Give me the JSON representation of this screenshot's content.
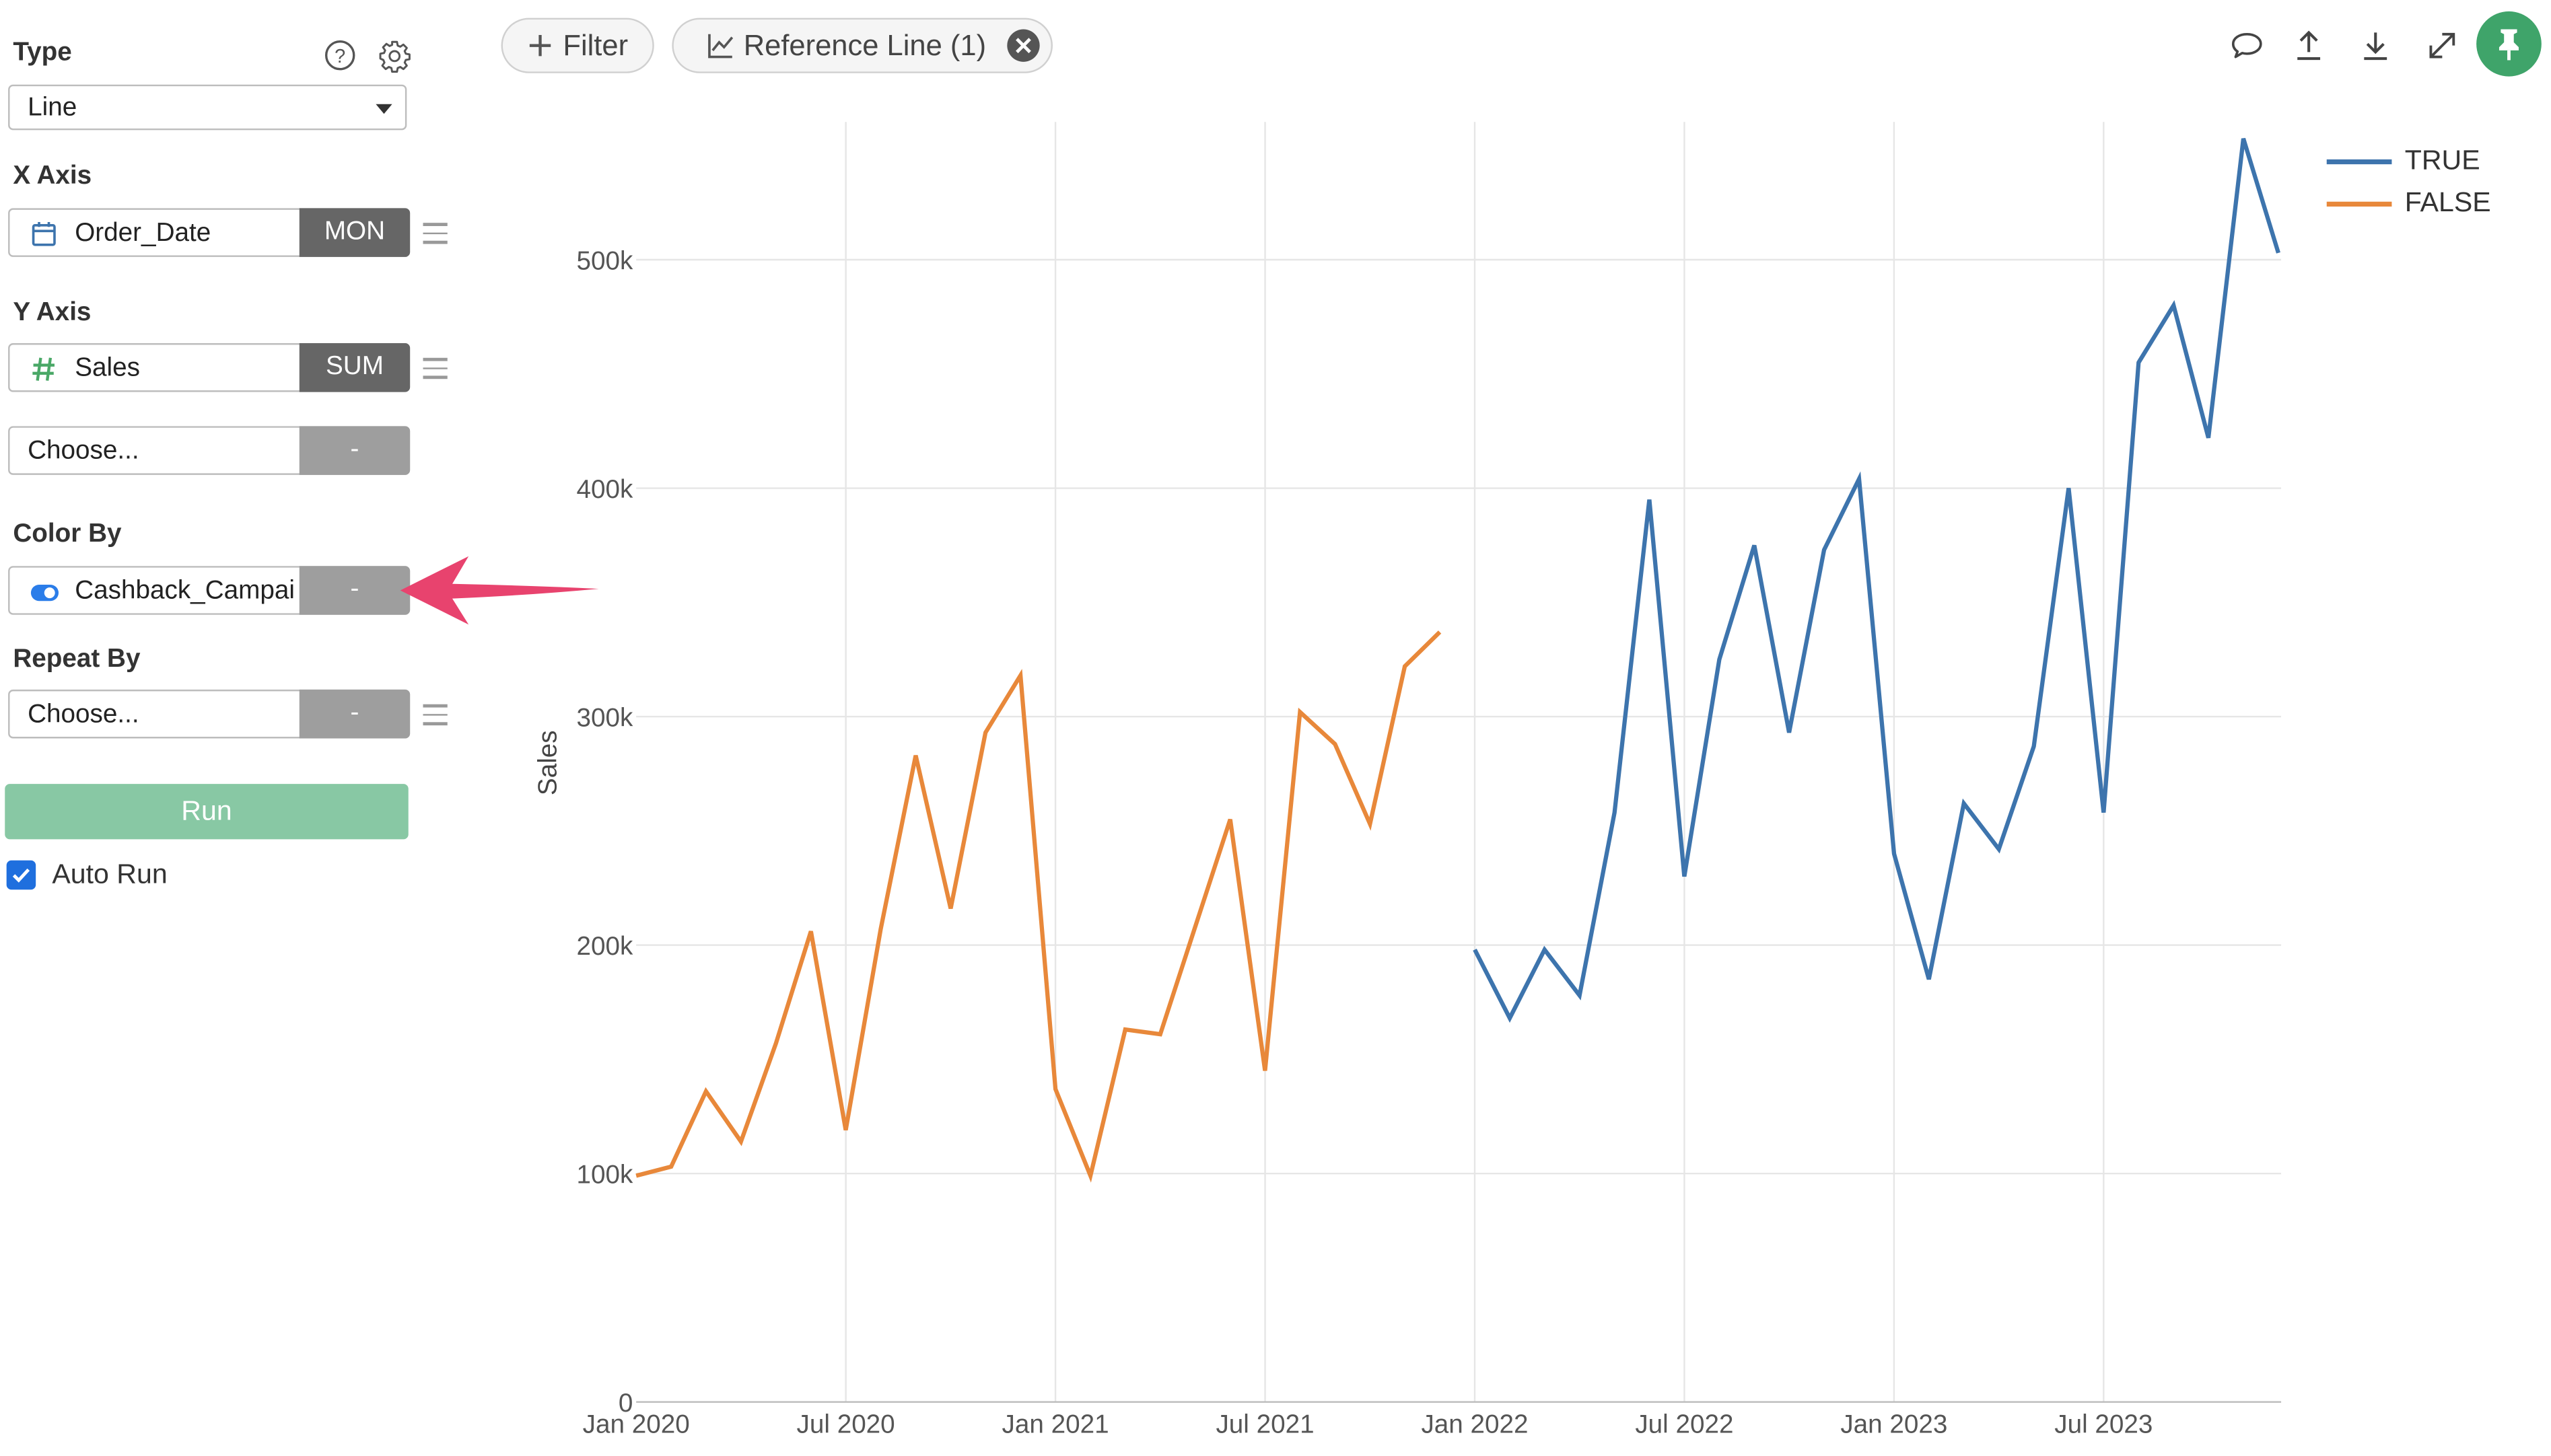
{
  "sidebar": {
    "type_label": "Type",
    "type_value": "Line",
    "x_axis_label": "X Axis",
    "x_field": "Order_Date",
    "x_agg": "MON",
    "y_axis_label": "Y Axis",
    "y_field": "Sales",
    "y_agg": "SUM",
    "y2_placeholder": "Choose...",
    "y2_agg": "-",
    "color_by_label": "Color By",
    "color_field": "Cashback_Campai",
    "color_agg": "-",
    "repeat_by_label": "Repeat By",
    "repeat_placeholder": "Choose...",
    "repeat_agg": "-",
    "run_label": "Run",
    "auto_run_label": "Auto Run",
    "auto_run_checked": true
  },
  "toolbar": {
    "filter_label": "Filter",
    "reference_line_label": "Reference Line (1)"
  },
  "icons": {
    "help": "help-icon",
    "settings": "gear-icon",
    "calendar": "calendar-icon",
    "number": "hash-icon",
    "toggle": "toggle-icon",
    "comment": "comment-icon",
    "upload": "upload-icon",
    "download": "download-icon",
    "expand": "expand-icon",
    "pin": "pin-icon"
  },
  "colors": {
    "true_series": "#3d74ad",
    "false_series": "#e8883a",
    "run_button": "#88c8a4",
    "pin_button": "#3fa46a",
    "annotation_arrow": "#e8436e"
  },
  "chart_data": {
    "type": "line",
    "xlabel": "",
    "ylabel": "Sales",
    "x_ticks": [
      "Jan 2020",
      "Jul 2020",
      "Jan 2021",
      "Jul 2021",
      "Jan 2022",
      "Jul 2022",
      "Jan 2023",
      "Jul 2023"
    ],
    "y_ticks": [
      "0",
      "100k",
      "200k",
      "300k",
      "400k",
      "500k"
    ],
    "ylim": [
      0,
      560000
    ],
    "grid": true,
    "legend_position": "top-right",
    "series": [
      {
        "name": "TRUE",
        "color": "#3d74ad",
        "x": [
          "2022-01",
          "2022-02",
          "2022-03",
          "2022-04",
          "2022-05",
          "2022-06",
          "2022-07",
          "2022-08",
          "2022-09",
          "2022-10",
          "2022-11",
          "2022-12",
          "2023-01",
          "2023-02",
          "2023-03",
          "2023-04",
          "2023-05",
          "2023-06",
          "2023-07",
          "2023-08",
          "2023-09",
          "2023-10",
          "2023-11",
          "2023-12"
        ],
        "values": [
          198000,
          168000,
          198000,
          178000,
          258000,
          395000,
          230000,
          325000,
          375000,
          293000,
          373000,
          404000,
          240000,
          185000,
          262000,
          242000,
          287000,
          400000,
          258000,
          455000,
          480000,
          422000,
          553000,
          503000
        ]
      },
      {
        "name": "FALSE",
        "color": "#e8883a",
        "x": [
          "2020-01",
          "2020-02",
          "2020-03",
          "2020-04",
          "2020-05",
          "2020-06",
          "2020-07",
          "2020-08",
          "2020-09",
          "2020-10",
          "2020-11",
          "2020-12",
          "2021-01",
          "2021-02",
          "2021-03",
          "2021-04",
          "2021-05",
          "2021-06",
          "2021-07",
          "2021-08",
          "2021-09",
          "2021-10",
          "2021-11",
          "2021-12"
        ],
        "values": [
          99000,
          103000,
          136000,
          114000,
          157000,
          206000,
          119000,
          207000,
          283000,
          216000,
          293000,
          318000,
          137000,
          99000,
          163000,
          161000,
          208000,
          255000,
          145000,
          302000,
          288000,
          253000,
          322000,
          337000
        ]
      }
    ]
  }
}
